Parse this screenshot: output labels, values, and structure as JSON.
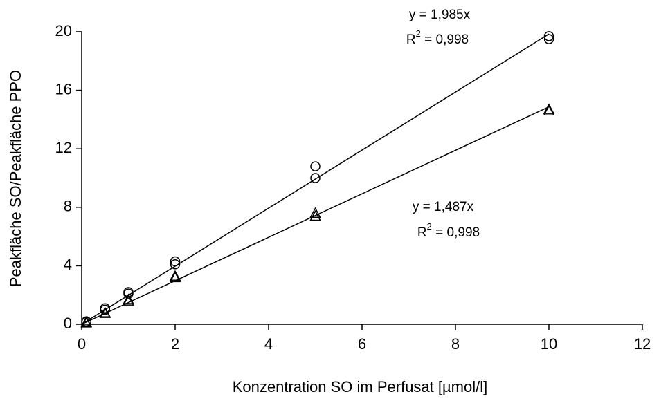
{
  "chart_data": {
    "type": "scatter",
    "xlabel": "Konzentration SO im Perfusat [µmol/l]",
    "ylabel": "Peakfläche SO/Peakfläche PPO",
    "xlim": [
      0,
      12
    ],
    "xticks": [
      0,
      2,
      4,
      6,
      8,
      10,
      12
    ],
    "ylim": [
      0,
      20
    ],
    "yticks": [
      0,
      4,
      8,
      12,
      16,
      20
    ],
    "grid": false,
    "series": [
      {
        "marker": "circle",
        "color": "#000000",
        "x": [
          0.1,
          0.1,
          0.5,
          0.5,
          1,
          1,
          2,
          2,
          5,
          5,
          10,
          10
        ],
        "values": [
          0.2,
          0.15,
          1.1,
          1.0,
          2.2,
          2.1,
          4.3,
          4.1,
          10.8,
          10.0,
          19.7,
          19.5
        ]
      },
      {
        "marker": "triangle",
        "color": "#000000",
        "x": [
          0.1,
          0.1,
          0.5,
          0.5,
          1,
          1,
          2,
          2,
          5,
          5,
          10,
          10
        ],
        "values": [
          0.15,
          0.1,
          0.8,
          0.75,
          1.7,
          1.6,
          3.3,
          3.2,
          7.6,
          7.4,
          14.7,
          14.6
        ]
      },
      {
        "marker": "none",
        "line": true,
        "color": "#000000",
        "x": [
          0,
          10
        ],
        "values": [
          0,
          19.85
        ]
      },
      {
        "marker": "none",
        "line": true,
        "color": "#000000",
        "x": [
          0,
          10
        ],
        "values": [
          0,
          14.87
        ]
      }
    ],
    "annotations": [
      {
        "equation": "y = 1,985x",
        "r": "R",
        "sup": "2",
        "rest": " = 0,998"
      },
      {
        "equation": "y = 1,487x",
        "r": "R",
        "sup": "2",
        "rest": " = 0,998"
      }
    ]
  }
}
